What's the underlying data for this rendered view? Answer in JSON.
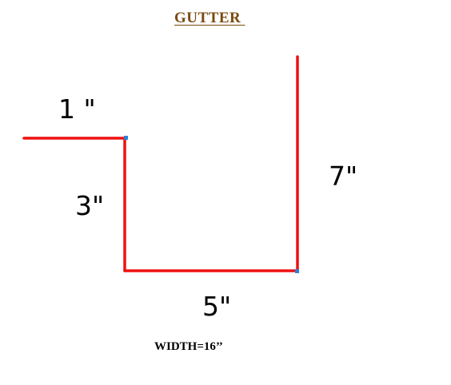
{
  "title": "GUTTER ",
  "colors": {
    "title": "#7a4a10",
    "profile_line": "#ee1111",
    "corner_marker": "#2f7fd8",
    "text": "#000000"
  },
  "dimensions": {
    "top_flange": "1 \"",
    "back_height": "3\"",
    "bottom": "5\"",
    "front_height": "7\""
  },
  "total_width": "WIDTH=16’’"
}
